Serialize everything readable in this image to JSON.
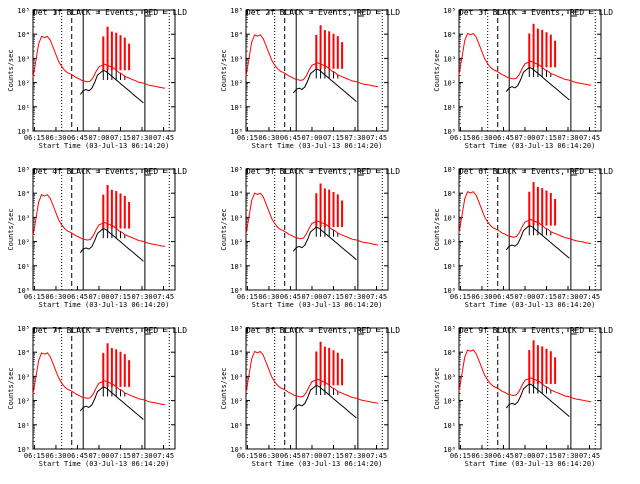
{
  "figure": {
    "y_label": "Counts/sec",
    "x_ticks": [
      "06:15",
      "06:30",
      "06:45",
      "07:00",
      "07:15",
      "07:30",
      "07:45"
    ],
    "y_ticks": [
      "10⁰",
      "10¹",
      "10²",
      "10³",
      "10⁴",
      "10⁵"
    ],
    "x_label": "Start Time (03-Jul-13 06:14:20)",
    "colors": {
      "events": "#000000",
      "lld": "#ff0000",
      "frame": "#000000"
    }
  },
  "chart_data": [
    {
      "type": "line",
      "title": "Det 1f BLACK = Events, RED = LLD",
      "detector": "1f",
      "xlabel": "Start Time (03-Jul-13 06:14:20)",
      "ylabel": "Counts/sec",
      "y_scale": "log",
      "ylim": [
        1,
        100000
      ],
      "xlim": [
        "06:14",
        "07:53"
      ],
      "series": [
        {
          "name": "Events",
          "color": "#000000"
        },
        {
          "name": "LLD",
          "color": "#ff0000"
        }
      ]
    },
    {
      "type": "line",
      "title": "Det 2f BLACK = Events, RED = LLD",
      "detector": "2f",
      "xlabel": "Start Time (03-Jul-13 06:14:20)",
      "ylabel": "Counts/sec",
      "y_scale": "log",
      "ylim": [
        1,
        100000
      ],
      "xlim": [
        "06:14",
        "07:53"
      ],
      "series": [
        {
          "name": "Events",
          "color": "#000000"
        },
        {
          "name": "LLD",
          "color": "#ff0000"
        }
      ]
    },
    {
      "type": "line",
      "title": "Det 3f BLACK = Events, RED = LLD",
      "detector": "3f",
      "xlabel": "Start Time (03-Jul-13 06:14:20)",
      "ylabel": "Counts/sec",
      "y_scale": "log",
      "ylim": [
        1,
        100000
      ],
      "xlim": [
        "06:14",
        "07:53"
      ],
      "series": [
        {
          "name": "Events",
          "color": "#000000"
        },
        {
          "name": "LLD",
          "color": "#ff0000"
        }
      ]
    },
    {
      "type": "line",
      "title": "Det 4f BLACK = Events, RED = LLD",
      "detector": "4f",
      "xlabel": "Start Time (03-Jul-13 06:14:20)",
      "ylabel": "Counts/sec",
      "y_scale": "log",
      "ylim": [
        1,
        100000
      ],
      "xlim": [
        "06:14",
        "07:53"
      ],
      "series": [
        {
          "name": "Events",
          "color": "#000000"
        },
        {
          "name": "LLD",
          "color": "#ff0000"
        }
      ]
    },
    {
      "type": "line",
      "title": "Det 5f BLACK = Events, RED = LLD",
      "detector": "5f",
      "xlabel": "Start Time (03-Jul-13 06:14:20)",
      "ylabel": "Counts/sec",
      "y_scale": "log",
      "ylim": [
        1,
        100000
      ],
      "xlim": [
        "06:14",
        "07:53"
      ],
      "series": [
        {
          "name": "Events",
          "color": "#000000"
        },
        {
          "name": "LLD",
          "color": "#ff0000"
        }
      ]
    },
    {
      "type": "line",
      "title": "Det 6f BLACK = Events, RED = LLD",
      "detector": "6f",
      "xlabel": "Start Time (03-Jul-13 06:14:20)",
      "ylabel": "Counts/sec",
      "y_scale": "log",
      "ylim": [
        1,
        100000
      ],
      "xlim": [
        "06:14",
        "07:53"
      ],
      "series": [
        {
          "name": "Events",
          "color": "#000000"
        },
        {
          "name": "LLD",
          "color": "#ff0000"
        }
      ]
    },
    {
      "type": "line",
      "title": "Det 7f BLACK = Events, RED = LLD",
      "detector": "7f",
      "xlabel": "Start Time (03-Jul-13 06:14:20)",
      "ylabel": "Counts/sec",
      "y_scale": "log",
      "ylim": [
        1,
        100000
      ],
      "xlim": [
        "06:14",
        "07:53"
      ],
      "series": [
        {
          "name": "Events",
          "color": "#000000"
        },
        {
          "name": "LLD",
          "color": "#ff0000"
        }
      ]
    },
    {
      "type": "line",
      "title": "Det 8f BLACK = Events, RED = LLD",
      "detector": "8f",
      "xlabel": "Start Time (03-Jul-13 06:14:20)",
      "ylabel": "Counts/sec",
      "y_scale": "log",
      "ylim": [
        1,
        100000
      ],
      "xlim": [
        "06:14",
        "07:53"
      ],
      "series": [
        {
          "name": "Events",
          "color": "#000000"
        },
        {
          "name": "LLD",
          "color": "#ff0000"
        }
      ]
    },
    {
      "type": "line",
      "title": "Det 9f BLACK = Events, RED = LLD",
      "detector": "9f",
      "xlabel": "Start Time (03-Jul-13 06:14:20)",
      "ylabel": "Counts/sec",
      "y_scale": "log",
      "ylim": [
        1,
        100000
      ],
      "xlim": [
        "06:14",
        "07:53"
      ],
      "series": [
        {
          "name": "Events",
          "color": "#000000"
        },
        {
          "name": "LLD",
          "color": "#ff0000"
        }
      ]
    }
  ],
  "markers": {
    "dotted": [
      "06:34",
      "07:49"
    ],
    "dashed": "06:41",
    "solid": [
      "06:49",
      "07:32"
    ]
  },
  "lld_series": {
    "points": [
      [
        "06:14",
        2.3
      ],
      [
        "06:16",
        3.0
      ],
      [
        "06:18",
        3.7
      ],
      [
        "06:20",
        4.0
      ],
      [
        "06:22",
        3.95
      ],
      [
        "06:24",
        4.0
      ],
      [
        "06:26",
        3.85
      ],
      [
        "06:28",
        3.55
      ],
      [
        "06:30",
        3.25
      ],
      [
        "06:32",
        2.95
      ],
      [
        "06:34",
        2.75
      ],
      [
        "06:36",
        2.6
      ],
      [
        "06:38",
        2.5
      ],
      [
        "06:40",
        2.45
      ],
      [
        "06:42",
        2.38
      ],
      [
        "06:44",
        2.3
      ],
      [
        "06:46",
        2.25
      ],
      [
        "06:48",
        2.18
      ],
      [
        "06:50",
        2.15
      ],
      [
        "06:52",
        2.12
      ],
      [
        "06:54",
        2.15
      ],
      [
        "06:56",
        2.3
      ],
      [
        "06:58",
        2.55
      ],
      [
        "07:00",
        2.75
      ],
      [
        "07:02",
        2.8
      ],
      [
        "07:04",
        2.85
      ],
      [
        "07:06",
        2.8
      ],
      [
        "07:08",
        2.75
      ],
      [
        "07:10",
        2.7
      ],
      [
        "07:12",
        2.6
      ],
      [
        "07:14",
        2.5
      ],
      [
        "07:16",
        2.45
      ],
      [
        "07:18",
        2.35
      ],
      [
        "07:20",
        2.3
      ],
      [
        "07:22",
        2.25
      ],
      [
        "07:24",
        2.2
      ],
      [
        "07:26",
        2.15
      ],
      [
        "07:28",
        2.1
      ],
      [
        "07:30",
        2.08
      ],
      [
        "07:32",
        2.05
      ],
      [
        "07:34",
        2.0
      ],
      [
        "07:36",
        1.97
      ],
      [
        "07:38",
        1.95
      ],
      [
        "07:40",
        1.93
      ],
      [
        "07:42",
        1.9
      ],
      [
        "07:44",
        1.88
      ],
      [
        "07:46",
        1.86
      ]
    ],
    "spikes": [
      [
        "07:03",
        4.0
      ],
      [
        "07:06",
        4.4
      ],
      [
        "07:09",
        4.2
      ],
      [
        "07:12",
        4.15
      ],
      [
        "07:15",
        4.05
      ],
      [
        "07:18",
        3.95
      ],
      [
        "07:21",
        3.7
      ]
    ]
  },
  "events_series": {
    "points": [
      [
        "06:47",
        1.6
      ],
      [
        "06:49",
        1.75
      ],
      [
        "06:51",
        1.8
      ],
      [
        "06:53",
        1.75
      ],
      [
        "06:55",
        1.85
      ],
      [
        "06:57",
        2.1
      ],
      [
        "06:59",
        2.4
      ],
      [
        "07:01",
        2.5
      ],
      [
        "07:03",
        2.6
      ],
      [
        "07:05",
        2.55
      ],
      [
        "07:07",
        2.45
      ],
      [
        "07:09",
        2.35
      ],
      [
        "07:11",
        2.25
      ],
      [
        "07:13",
        2.15
      ],
      [
        "07:15",
        2.05
      ],
      [
        "07:17",
        1.95
      ],
      [
        "07:19",
        1.85
      ],
      [
        "07:21",
        1.75
      ],
      [
        "07:23",
        1.65
      ],
      [
        "07:25",
        1.55
      ],
      [
        "07:27",
        1.45
      ],
      [
        "07:29",
        1.35
      ],
      [
        "07:31",
        1.25
      ]
    ],
    "spikes": [
      [
        "07:03",
        2.9
      ],
      [
        "07:06",
        2.85
      ],
      [
        "07:09",
        2.7
      ],
      [
        "07:12",
        2.6
      ],
      [
        "07:15",
        2.5
      ],
      [
        "07:18",
        2.35
      ],
      [
        "07:21",
        2.2
      ]
    ]
  }
}
